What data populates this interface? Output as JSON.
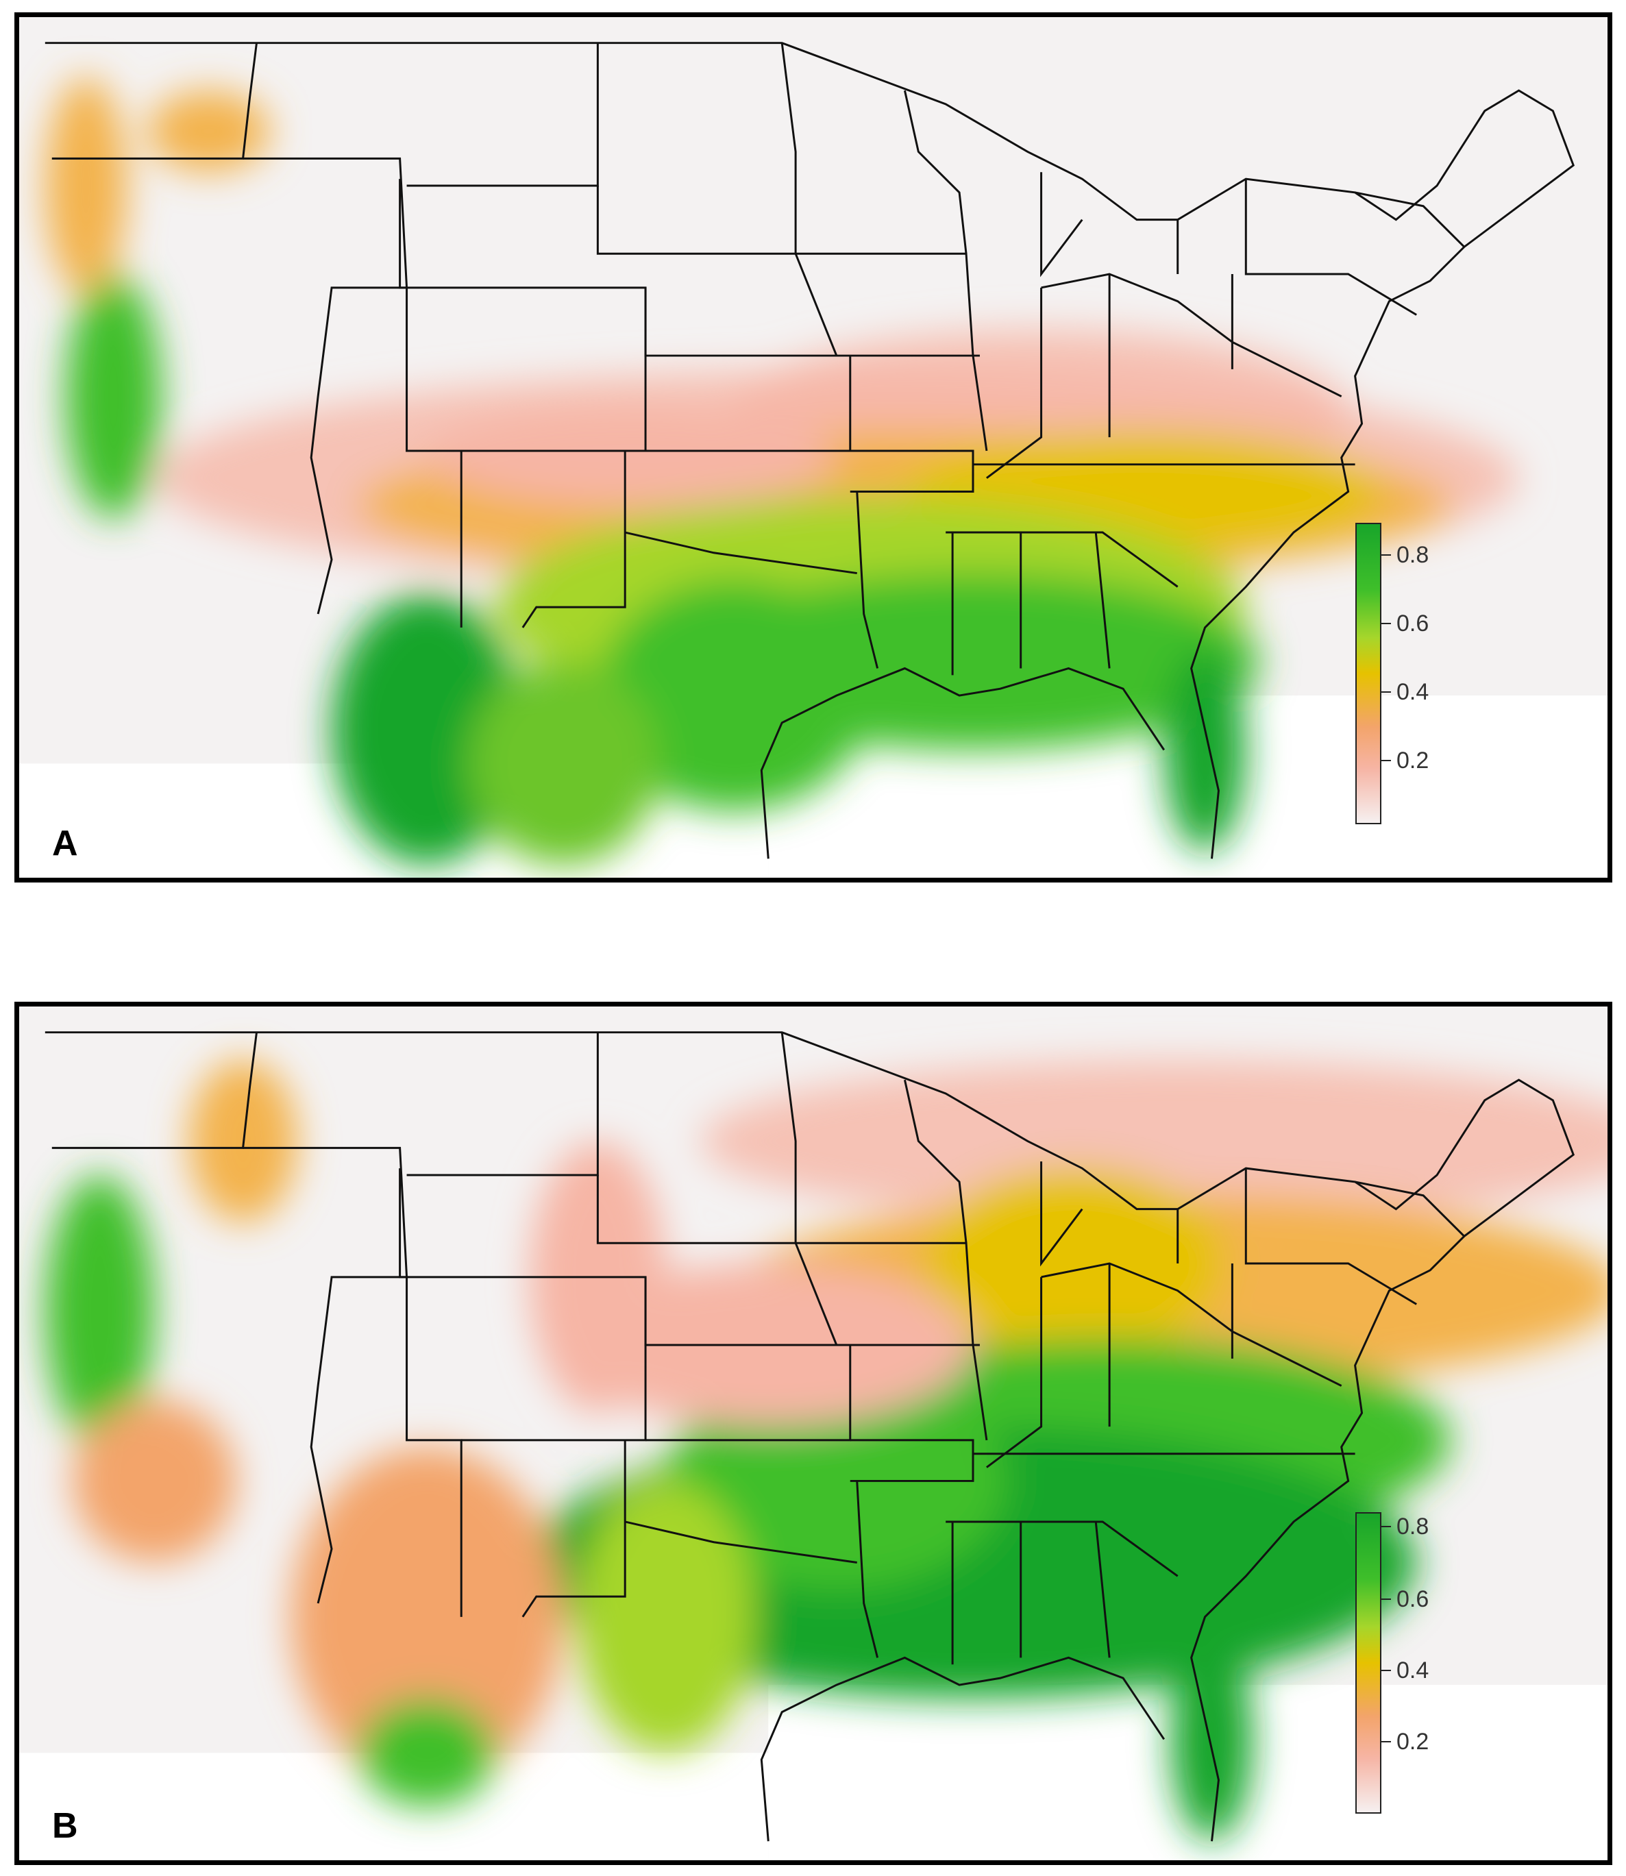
{
  "panels": [
    {
      "id": "A",
      "label": "A",
      "legend_ticks": [
        "0.8",
        "0.6",
        "0.4",
        "0.2"
      ]
    },
    {
      "id": "B",
      "label": "B",
      "legend_ticks": [
        "0.8",
        "0.6",
        "0.4",
        "0.2"
      ]
    }
  ],
  "colors": {
    "low": "#f6f0f0",
    "pink": "#f6b5a5",
    "orange": "#f3a46b",
    "yellow": "#e6c200",
    "lightgreen": "#a6d62b",
    "green": "#18a52a",
    "border": "#000000"
  }
}
